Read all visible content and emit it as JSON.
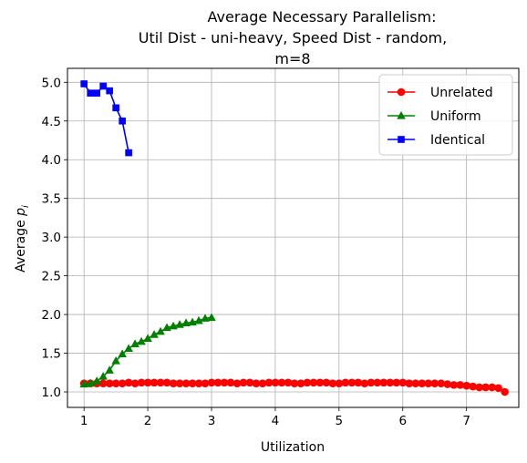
{
  "chart_data": {
    "type": "line",
    "title_lines": [
      "Average Necessary Parallelism:",
      "Util Dist - uni-heavy, Speed Dist - random,",
      "m=8"
    ],
    "xlabel": "Utilization",
    "ylabel": "Average p_i",
    "xlim": [
      0.74,
      7.82
    ],
    "ylim": [
      0.8,
      5.18
    ],
    "xticks": [
      1,
      2,
      3,
      4,
      5,
      6,
      7
    ],
    "yticks": [
      1.0,
      1.5,
      2.0,
      2.5,
      3.0,
      3.5,
      4.0,
      4.5,
      5.0
    ],
    "xtick_labels": [
      "1",
      "2",
      "3",
      "4",
      "5",
      "6",
      "7"
    ],
    "ytick_labels": [
      "1.0",
      "1.5",
      "2.0",
      "2.5",
      "3.0",
      "3.5",
      "4.0",
      "4.5",
      "5.0"
    ],
    "grid": true,
    "legend_position": "top-right",
    "series": [
      {
        "name": "Unrelated",
        "color": "#ff0000",
        "marker": "circle",
        "points": [
          [
            1.0,
            1.11
          ],
          [
            1.1,
            1.11
          ],
          [
            1.2,
            1.11
          ],
          [
            1.3,
            1.11
          ],
          [
            1.4,
            1.11
          ],
          [
            1.5,
            1.11
          ],
          [
            1.6,
            1.11
          ],
          [
            1.7,
            1.12
          ],
          [
            1.8,
            1.11
          ],
          [
            1.9,
            1.12
          ],
          [
            2.0,
            1.12
          ],
          [
            2.1,
            1.12
          ],
          [
            2.2,
            1.12
          ],
          [
            2.3,
            1.12
          ],
          [
            2.4,
            1.11
          ],
          [
            2.5,
            1.11
          ],
          [
            2.6,
            1.11
          ],
          [
            2.7,
            1.11
          ],
          [
            2.8,
            1.11
          ],
          [
            2.9,
            1.11
          ],
          [
            3.0,
            1.12
          ],
          [
            3.1,
            1.12
          ],
          [
            3.2,
            1.12
          ],
          [
            3.3,
            1.12
          ],
          [
            3.4,
            1.11
          ],
          [
            3.5,
            1.12
          ],
          [
            3.6,
            1.12
          ],
          [
            3.7,
            1.11
          ],
          [
            3.8,
            1.11
          ],
          [
            3.9,
            1.12
          ],
          [
            4.0,
            1.12
          ],
          [
            4.1,
            1.12
          ],
          [
            4.2,
            1.12
          ],
          [
            4.3,
            1.11
          ],
          [
            4.4,
            1.11
          ],
          [
            4.5,
            1.12
          ],
          [
            4.6,
            1.12
          ],
          [
            4.7,
            1.12
          ],
          [
            4.8,
            1.12
          ],
          [
            4.9,
            1.11
          ],
          [
            5.0,
            1.11
          ],
          [
            5.1,
            1.12
          ],
          [
            5.2,
            1.12
          ],
          [
            5.3,
            1.12
          ],
          [
            5.4,
            1.11
          ],
          [
            5.5,
            1.12
          ],
          [
            5.6,
            1.12
          ],
          [
            5.7,
            1.12
          ],
          [
            5.8,
            1.12
          ],
          [
            5.9,
            1.12
          ],
          [
            6.0,
            1.12
          ],
          [
            6.1,
            1.11
          ],
          [
            6.2,
            1.11
          ],
          [
            6.3,
            1.11
          ],
          [
            6.4,
            1.11
          ],
          [
            6.5,
            1.11
          ],
          [
            6.6,
            1.11
          ],
          [
            6.7,
            1.1
          ],
          [
            6.8,
            1.09
          ],
          [
            6.9,
            1.09
          ],
          [
            7.0,
            1.08
          ],
          [
            7.1,
            1.07
          ],
          [
            7.2,
            1.06
          ],
          [
            7.3,
            1.06
          ],
          [
            7.4,
            1.06
          ],
          [
            7.5,
            1.05
          ],
          [
            7.6,
            1.0
          ]
        ]
      },
      {
        "name": "Uniform",
        "color": "#008000",
        "marker": "triangle",
        "points": [
          [
            1.0,
            1.1
          ],
          [
            1.1,
            1.11
          ],
          [
            1.2,
            1.14
          ],
          [
            1.3,
            1.2
          ],
          [
            1.4,
            1.28
          ],
          [
            1.5,
            1.4
          ],
          [
            1.6,
            1.49
          ],
          [
            1.7,
            1.56
          ],
          [
            1.8,
            1.62
          ],
          [
            1.9,
            1.65
          ],
          [
            2.0,
            1.69
          ],
          [
            2.1,
            1.74
          ],
          [
            2.2,
            1.78
          ],
          [
            2.3,
            1.83
          ],
          [
            2.4,
            1.85
          ],
          [
            2.5,
            1.87
          ],
          [
            2.6,
            1.89
          ],
          [
            2.7,
            1.9
          ],
          [
            2.8,
            1.92
          ],
          [
            2.9,
            1.95
          ],
          [
            3.0,
            1.96
          ]
        ]
      },
      {
        "name": "Identical",
        "color": "#0000ff",
        "marker": "square",
        "points": [
          [
            1.0,
            4.98
          ],
          [
            1.1,
            4.86
          ],
          [
            1.2,
            4.86
          ],
          [
            1.3,
            4.95
          ],
          [
            1.4,
            4.89
          ],
          [
            1.5,
            4.67
          ],
          [
            1.6,
            4.5
          ],
          [
            1.7,
            4.09
          ]
        ]
      }
    ]
  }
}
